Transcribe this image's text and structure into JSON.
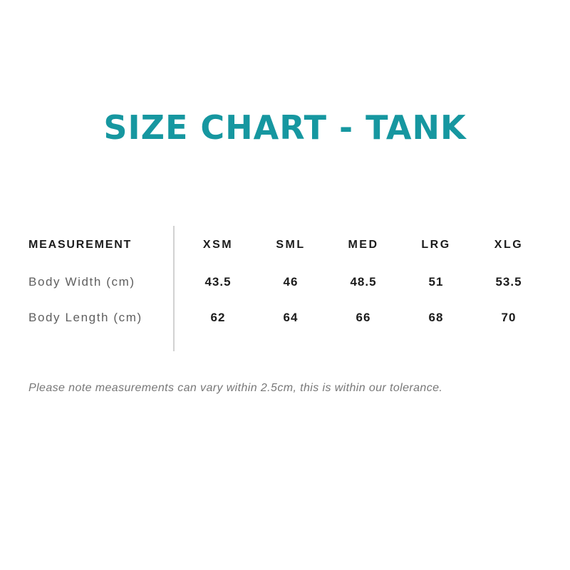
{
  "title": {
    "text": "SIZE CHART - TANK",
    "color": "#1697A0"
  },
  "table": {
    "header_label": "MEASUREMENT",
    "size_columns": [
      "XSM",
      "SML",
      "MED",
      "LRG",
      "XLG"
    ],
    "rows": [
      {
        "label": "Body Width (cm)",
        "values": [
          "43.5",
          "46",
          "48.5",
          "51",
          "53.5"
        ]
      },
      {
        "label": "Body Length (cm)",
        "values": [
          "62",
          "64",
          "66",
          "68",
          "70"
        ]
      }
    ],
    "divider_color": "#d2d2d2"
  },
  "note": {
    "text": "Please note measurements can vary within 2.5cm, this is within our tolerance."
  },
  "chart_data": {
    "type": "table",
    "title": "SIZE CHART - TANK",
    "columns": [
      "MEASUREMENT",
      "XSM",
      "SML",
      "MED",
      "LRG",
      "XLG"
    ],
    "rows": [
      [
        "Body Width (cm)",
        43.5,
        46,
        48.5,
        51,
        53.5
      ],
      [
        "Body Length (cm)",
        62,
        64,
        66,
        68,
        70
      ]
    ],
    "note": "Please note measurements can vary within 2.5cm, this is within our tolerance."
  }
}
